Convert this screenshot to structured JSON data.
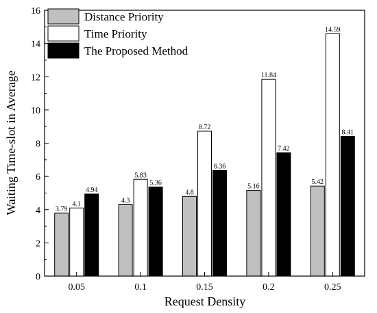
{
  "chart_data": {
    "type": "bar",
    "title": "",
    "xlabel": "Request Density",
    "ylabel": "Waiting Time-slot in Average",
    "categories": [
      "0.05",
      "0.1",
      "0.15",
      "0.2",
      "0.25"
    ],
    "ylim": [
      0,
      16
    ],
    "yticks": [
      0,
      2,
      4,
      6,
      8,
      10,
      12,
      14,
      16
    ],
    "grid": false,
    "legend_position": "top-left",
    "series": [
      {
        "name": "Distance Priority",
        "color": "#c0c0c0",
        "values": [
          3.79,
          4.3,
          4.8,
          5.16,
          5.42
        ],
        "labels": [
          "3.79",
          "4.3",
          "4.8",
          "5.16",
          "5.42"
        ]
      },
      {
        "name": "Time Priority",
        "color": "#ffffff",
        "values": [
          4.1,
          5.83,
          8.72,
          11.84,
          14.59
        ],
        "labels": [
          "4.1",
          "5.83",
          "8.72",
          "11.84",
          "14.59"
        ]
      },
      {
        "name": "The Proposed Method",
        "color": "#000000",
        "values": [
          4.94,
          5.36,
          6.36,
          7.42,
          8.41
        ],
        "labels": [
          "4.94",
          "5.36",
          "6.36",
          "7.42",
          "8.41"
        ]
      }
    ]
  }
}
